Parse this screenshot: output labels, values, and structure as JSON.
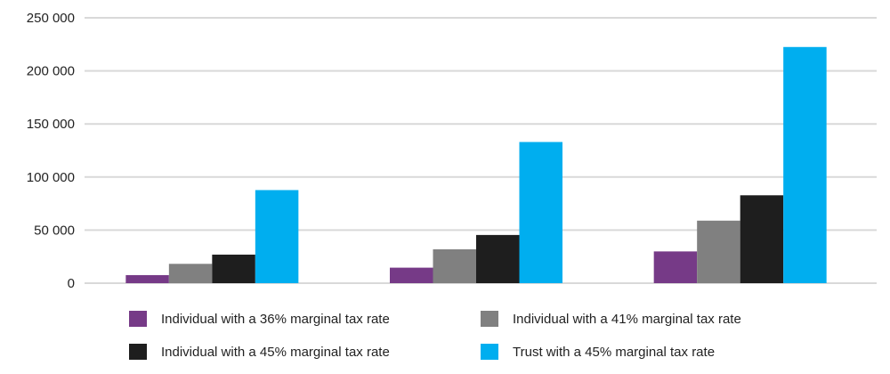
{
  "chart_data": {
    "type": "bar",
    "title": "",
    "xlabel": "",
    "ylabel": "",
    "ylim": [
      0,
      250000
    ],
    "yticks": [
      0,
      50000,
      100000,
      150000,
      200000,
      250000
    ],
    "ytick_labels": [
      "0",
      "50 000",
      "100 000",
      "150 000",
      "200 000",
      "250 000"
    ],
    "categories": [
      "",
      "",
      ""
    ],
    "grid": true,
    "legend_position": "bottom",
    "series": [
      {
        "name": "Individual with a 36% marginal tax rate",
        "color": "#763a87",
        "values": [
          7600,
          14600,
          29900
        ]
      },
      {
        "name": "Individual with a 41% marginal tax rate",
        "color": "#808080",
        "values": [
          18200,
          31900,
          58900
        ]
      },
      {
        "name": "Individual with a 45% marginal tax rate",
        "color": "#1e1e1e",
        "values": [
          26900,
          45400,
          82800
        ]
      },
      {
        "name": "Trust with a 45% marginal tax rate",
        "color": "#00aeef",
        "values": [
          87700,
          133000,
          222500
        ]
      }
    ]
  }
}
